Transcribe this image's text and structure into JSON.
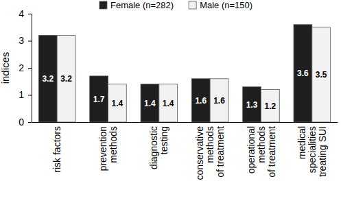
{
  "chart_data": {
    "type": "bar",
    "y_label": "indices",
    "categories": [
      "risk factors",
      "prevention\nmethods",
      "diagnostic\ntesting",
      "conservative\nmethods\nof treatment",
      "operational\nmethods\nof treatment",
      "medical\nspecialities\ntreating SUI"
    ],
    "series": [
      {
        "name": "Female (n=282)",
        "color": "#1f1f1f",
        "values": [
          3.2,
          1.7,
          1.4,
          1.6,
          1.3,
          3.6
        ]
      },
      {
        "name": "Male (n=150)",
        "color": "#f2f2f2",
        "values": [
          3.2,
          1.4,
          1.4,
          1.6,
          1.2,
          3.5
        ]
      }
    ],
    "ylim": [
      0,
      4
    ],
    "yticks": [
      0,
      1,
      2,
      3,
      4
    ],
    "grid": false,
    "legend": "top",
    "data_labels": true
  }
}
